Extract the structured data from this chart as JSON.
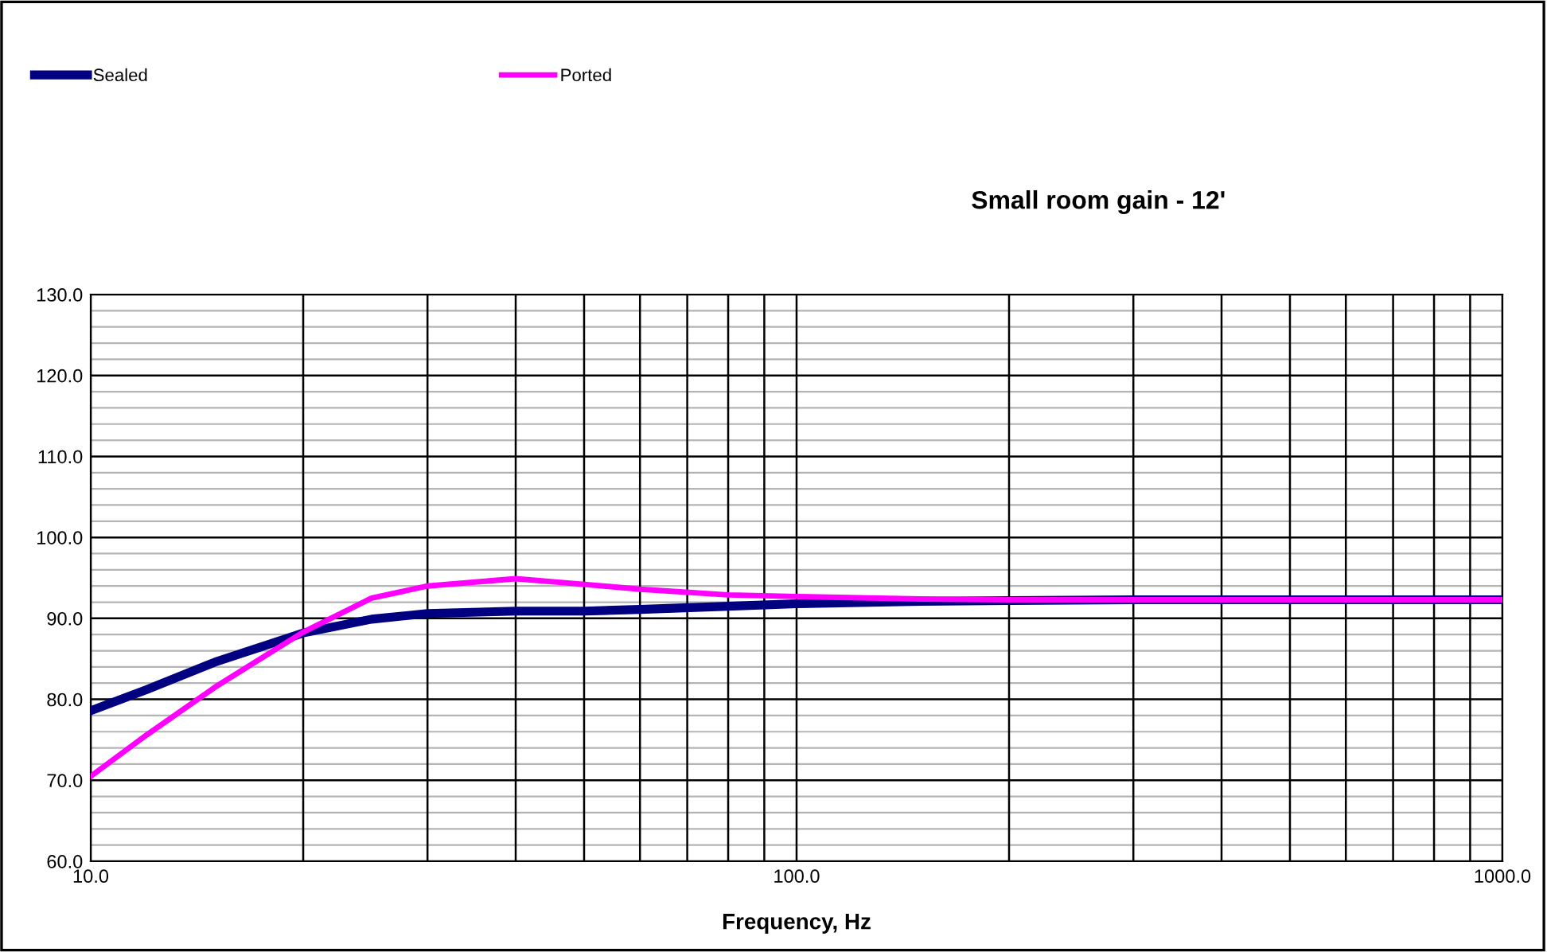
{
  "chart_data": {
    "type": "line",
    "title": "Small room gain - 12'",
    "xlabel": "Frequency, Hz",
    "log": "x",
    "grid": true,
    "legend": "top left",
    "marker": "none",
    "line_style": "solid",
    "xlim": [
      10,
      1000
    ],
    "xticks": [
      {
        "value": 10,
        "label": "10.0"
      },
      {
        "value": 20,
        "label": null
      },
      {
        "value": 30,
        "label": null
      },
      {
        "value": 40,
        "label": null
      },
      {
        "value": 50,
        "label": null
      },
      {
        "value": 60,
        "label": null
      },
      {
        "value": 70,
        "label": null
      },
      {
        "value": 80,
        "label": null
      },
      {
        "value": 90,
        "label": null
      },
      {
        "value": 100,
        "label": "100.0"
      },
      {
        "value": 200,
        "label": null
      },
      {
        "value": 300,
        "label": null
      },
      {
        "value": 400,
        "label": null
      },
      {
        "value": 500,
        "label": null
      },
      {
        "value": 600,
        "label": null
      },
      {
        "value": 700,
        "label": null
      },
      {
        "value": 800,
        "label": null
      },
      {
        "value": 900,
        "label": null
      },
      {
        "value": 1000,
        "label": "1000.0"
      }
    ],
    "ylim": [
      60,
      130
    ],
    "yticks": [
      {
        "value": 60,
        "label": "60.0"
      },
      {
        "value": 62,
        "label": null
      },
      {
        "value": 64,
        "label": null
      },
      {
        "value": 66,
        "label": null
      },
      {
        "value": 68,
        "label": null
      },
      {
        "value": 70,
        "label": "70.0"
      },
      {
        "value": 72,
        "label": null
      },
      {
        "value": 74,
        "label": null
      },
      {
        "value": 76,
        "label": null
      },
      {
        "value": 78,
        "label": null
      },
      {
        "value": 80,
        "label": "80.0"
      },
      {
        "value": 82,
        "label": null
      },
      {
        "value": 84,
        "label": null
      },
      {
        "value": 86,
        "label": null
      },
      {
        "value": 88,
        "label": null
      },
      {
        "value": 90,
        "label": "90.0"
      },
      {
        "value": 92,
        "label": null
      },
      {
        "value": 94,
        "label": null
      },
      {
        "value": 96,
        "label": null
      },
      {
        "value": 98,
        "label": null
      },
      {
        "value": 100,
        "label": "100.0"
      },
      {
        "value": 102,
        "label": null
      },
      {
        "value": 104,
        "label": null
      },
      {
        "value": 106,
        "label": null
      },
      {
        "value": 108,
        "label": null
      },
      {
        "value": 110,
        "label": "110.0"
      },
      {
        "value": 112,
        "label": null
      },
      {
        "value": 114,
        "label": null
      },
      {
        "value": 116,
        "label": null
      },
      {
        "value": 118,
        "label": null
      },
      {
        "value": 120,
        "label": "120.0"
      },
      {
        "value": 122,
        "label": null
      },
      {
        "value": 124,
        "label": null
      },
      {
        "value": 126,
        "label": null
      },
      {
        "value": 128,
        "label": null
      },
      {
        "value": 130,
        "label": "130.0"
      }
    ],
    "x": [
      10,
      12,
      15,
      20,
      25,
      30,
      40,
      50,
      60,
      80,
      100,
      150,
      200,
      300,
      500,
      1000
    ],
    "series": [
      {
        "name": "Sealed",
        "color": "#000080",
        "values": [
          78.6,
          81.2,
          84.6,
          88.2,
          89.9,
          90.6,
          90.9,
          90.9,
          91.1,
          91.5,
          91.8,
          92.1,
          92.2,
          92.3,
          92.3,
          92.3
        ]
      },
      {
        "name": "Ported",
        "color": "#ff00ff",
        "values": [
          70.5,
          75.6,
          81.5,
          88.3,
          92.5,
          94.0,
          94.9,
          94.2,
          93.6,
          92.9,
          92.7,
          92.4,
          92.3,
          92.3,
          92.3,
          92.3
        ]
      }
    ]
  }
}
